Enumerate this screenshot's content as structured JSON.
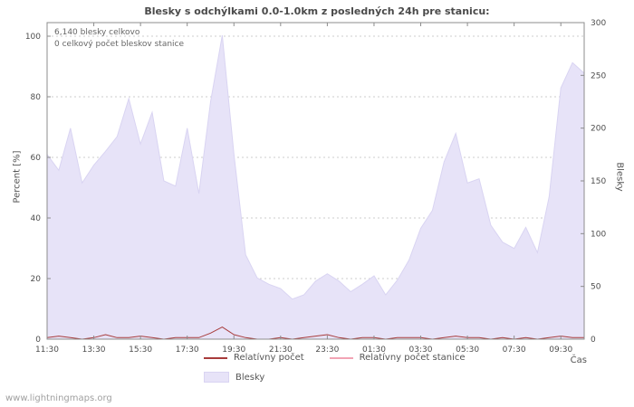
{
  "page": {
    "footer_link": "www.lightningmaps.org"
  },
  "annotations": {
    "total": "6,140 blesky celkovo",
    "station_total": "0 celkový počet bleskov stanice"
  },
  "colors": {
    "area": "#e7e3f8",
    "area_edge": "#d9d4f2",
    "relative_line": "#a83c3c",
    "relative_station_line": "#f2a4b4",
    "grid": "#cccccc",
    "axis": "#8c8c8c",
    "text": "#4d4d4d"
  },
  "chart_data": {
    "type": "area",
    "title": "Blesky s odchýlkami 0.0-1.0km z posledných 24h pre stanicu:",
    "xlabel": "Čas",
    "ylabel_left": "Percent  [%]",
    "ylabel_right": "Blesky",
    "grid": "horizontal-only",
    "legend_position": "bottom-center",
    "left_axis": {
      "min": 0,
      "max": 100,
      "ticks": [
        0,
        20,
        40,
        60,
        80,
        100
      ]
    },
    "right_axis": {
      "min": 0,
      "max": 300,
      "ticks": [
        0,
        50,
        100,
        150,
        200,
        250,
        300
      ]
    },
    "x_tick_labels": [
      "11:30",
      "13:30",
      "15:30",
      "17:30",
      "19:30",
      "21:30",
      "23:30",
      "01:30",
      "03:30",
      "05:30",
      "07:30",
      "09:30"
    ],
    "x_tick_step": 4,
    "x": [
      "11:30",
      "12:00",
      "12:30",
      "13:00",
      "13:30",
      "14:00",
      "14:30",
      "15:00",
      "15:30",
      "16:00",
      "16:30",
      "17:00",
      "17:30",
      "18:00",
      "18:30",
      "19:00",
      "19:30",
      "20:00",
      "20:30",
      "21:00",
      "21:30",
      "22:00",
      "22:30",
      "23:00",
      "23:30",
      "00:00",
      "00:30",
      "01:00",
      "01:30",
      "02:00",
      "02:30",
      "03:00",
      "03:30",
      "04:00",
      "04:30",
      "05:00",
      "05:30",
      "06:00",
      "06:30",
      "07:00",
      "07:30",
      "08:00",
      "08:30",
      "09:00",
      "09:30",
      "10:00",
      "10:30"
    ],
    "series": [
      {
        "name": "Blesky",
        "axis": "right",
        "style": "area",
        "values": [
          175,
          160,
          200,
          148,
          165,
          178,
          192,
          228,
          185,
          215,
          150,
          145,
          200,
          138,
          225,
          288,
          175,
          80,
          58,
          52,
          48,
          38,
          42,
          55,
          62,
          55,
          45,
          52,
          60,
          42,
          56,
          75,
          105,
          122,
          168,
          195,
          148,
          152,
          108,
          92,
          86,
          106,
          82,
          135,
          238,
          262,
          252
        ]
      },
      {
        "name": "Relatívny počet",
        "axis": "left",
        "style": "line",
        "values": [
          0.5,
          1,
          0.5,
          0,
          0.5,
          1.5,
          0.5,
          0.5,
          1,
          0.5,
          0,
          0.5,
          0.5,
          0.5,
          2,
          4,
          1.5,
          0.5,
          0,
          0,
          0.5,
          0,
          0.5,
          1,
          1.5,
          0.5,
          0,
          0.5,
          0.5,
          0,
          0.5,
          0.5,
          0.5,
          0,
          0.5,
          1,
          0.5,
          0.5,
          0,
          0.5,
          0,
          0.5,
          0,
          0.5,
          1,
          0.5,
          0.5
        ]
      },
      {
        "name": "Relatívny počet stanice",
        "axis": "left",
        "style": "line",
        "values": [
          0,
          0,
          0,
          0,
          0,
          0,
          0,
          0,
          0,
          0,
          0,
          0,
          0,
          0,
          0,
          0,
          0,
          0,
          0,
          0,
          0,
          0,
          0,
          0,
          0,
          0,
          0,
          0,
          0,
          0,
          0,
          0,
          0,
          0,
          0,
          0,
          0,
          0,
          0,
          0,
          0,
          0,
          0,
          0,
          0,
          0,
          0
        ]
      }
    ]
  }
}
